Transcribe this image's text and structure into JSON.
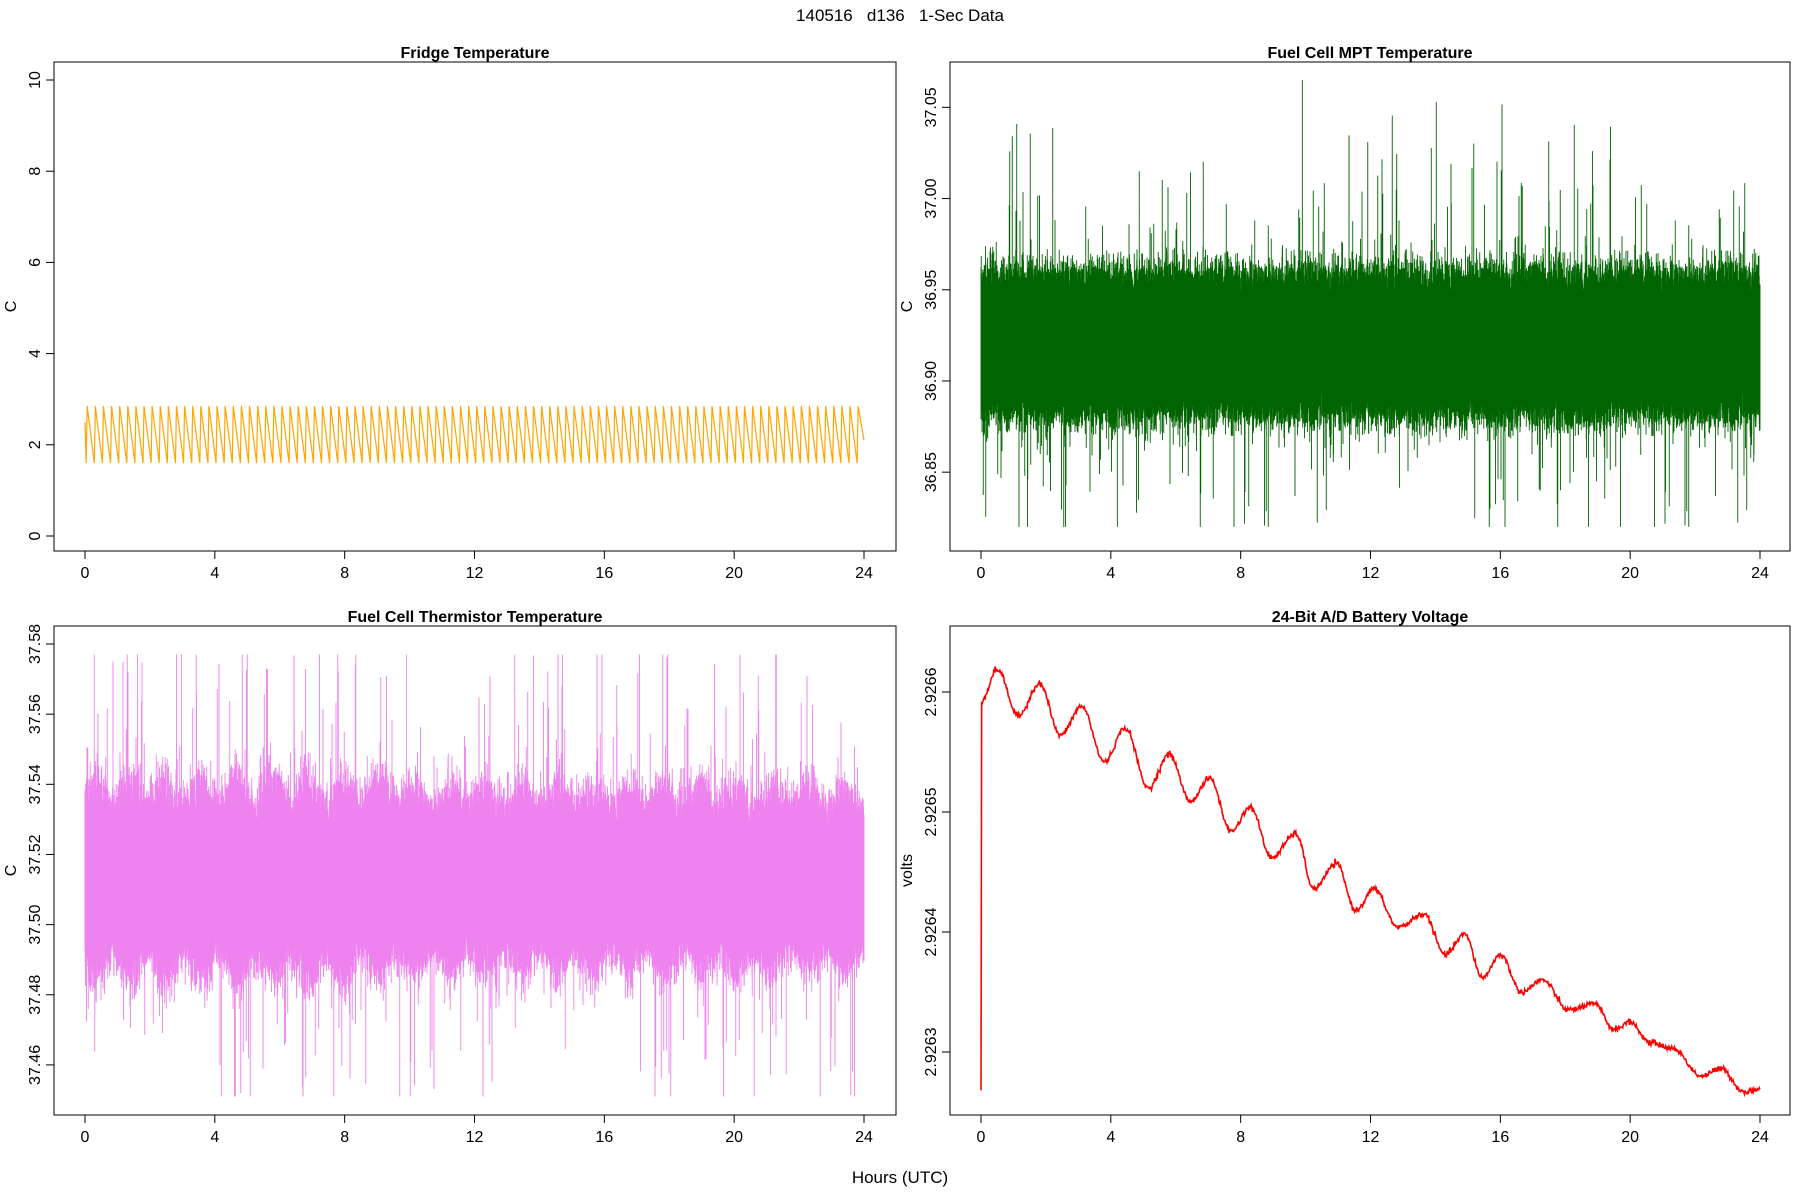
{
  "figure": {
    "title": "140516   d136   1-Sec Data",
    "xlabel": "Hours (UTC)"
  },
  "chart_data": [
    {
      "id": "fridge",
      "type": "line",
      "title": "Fridge Temperature",
      "ylabel": "C",
      "xlabel": "",
      "xlim": [
        0,
        24
      ],
      "ylim": [
        0,
        10
      ],
      "xticks": [
        0,
        4,
        8,
        12,
        16,
        20,
        24
      ],
      "yticks": [
        0,
        2,
        4,
        6,
        8,
        10
      ],
      "ytick_labels": [
        "0",
        "2",
        "4",
        "6",
        "8",
        "10"
      ],
      "color": "#FFA500",
      "series": [
        {
          "signal": "sawtooth",
          "x_range": [
            0,
            24
          ],
          "cycles": 96,
          "y_min": 1.6,
          "y_max": 2.85,
          "start_y": 2.5,
          "end_y": 2.1
        }
      ]
    },
    {
      "id": "fuel-cell-mpt",
      "type": "line",
      "title": "Fuel Cell MPT Temperature",
      "ylabel": "C",
      "xlabel": "",
      "xlim": [
        0,
        24
      ],
      "ylim": [
        36.815,
        37.065
      ],
      "xticks": [
        0,
        4,
        8,
        12,
        16,
        20,
        24
      ],
      "yticks": [
        36.85,
        36.9,
        36.95,
        37.0,
        37.05
      ],
      "ytick_labels": [
        "36.85",
        "36.90",
        "36.95",
        "37.00",
        "37.05"
      ],
      "color": "#006400",
      "series": [
        {
          "signal": "noise-band",
          "x_range": [
            0,
            24
          ],
          "center": 36.92,
          "core_half_width": 0.04,
          "extreme_min": 36.82,
          "extreme_max": 37.065
        }
      ]
    },
    {
      "id": "fuel-cell-thermistor",
      "type": "line",
      "title": "Fuel Cell Thermistor Temperature",
      "ylabel": "C",
      "xlabel": "",
      "xlim": [
        0,
        24
      ],
      "ylim": [
        37.45,
        37.58
      ],
      "xticks": [
        0,
        4,
        8,
        12,
        16,
        20,
        24
      ],
      "yticks": [
        37.46,
        37.48,
        37.5,
        37.52,
        37.54,
        37.56,
        37.58
      ],
      "ytick_labels": [
        "37.46",
        "37.48",
        "37.50",
        "37.52",
        "37.54",
        "37.56",
        "37.58"
      ],
      "color": "#EE82EE",
      "series": [
        {
          "signal": "modulated-noise-band",
          "x_range": [
            0,
            24
          ],
          "center": 37.513,
          "core_half_width": 0.023,
          "modulation_period_hours": 1.1,
          "extreme_min": 37.451,
          "extreme_max": 37.577
        }
      ]
    },
    {
      "id": "battery-voltage",
      "type": "line",
      "title": "24-Bit A/D Battery Voltage",
      "ylabel": "volts",
      "xlabel": "",
      "xlim": [
        0,
        24
      ],
      "ylim": [
        2.92626,
        2.92664
      ],
      "xticks": [
        0,
        4,
        8,
        12,
        16,
        20,
        24
      ],
      "yticks": [
        2.9263,
        2.9264,
        2.9265,
        2.9266
      ],
      "ytick_labels": [
        "2.9263",
        "2.9264",
        "2.9265",
        "2.9266"
      ],
      "color": "#FF0000",
      "series": [
        {
          "signal": "points",
          "x": [
            0,
            0.02,
            0.5,
            1.15,
            1.8,
            2.45,
            3.1,
            3.8,
            4.45,
            5.15,
            5.8,
            6.45,
            7.05,
            7.7,
            8.3,
            8.95,
            9.7,
            10.25,
            10.95,
            11.55,
            12.1,
            12.85,
            13.65,
            14.3,
            14.9,
            15.45,
            16.0,
            16.65,
            17.3,
            18.1,
            18.9,
            19.5,
            20.0,
            20.6,
            21.3,
            22.2,
            22.8,
            23.5,
            24.0
          ],
          "y": [
            2.926268,
            2.926593,
            2.926619,
            2.92658,
            2.926607,
            2.926564,
            2.926588,
            2.926542,
            2.92657,
            2.92652,
            2.926548,
            2.926509,
            2.926528,
            2.926484,
            2.926504,
            2.926462,
            2.926482,
            2.926436,
            2.926457,
            2.926418,
            2.926436,
            2.926404,
            2.926415,
            2.926381,
            2.926398,
            2.926362,
            2.926381,
            2.92635,
            2.92636,
            2.926335,
            2.92634,
            2.926319,
            2.926325,
            2.926308,
            2.926303,
            2.92628,
            2.926286,
            2.926267,
            2.926269
          ]
        }
      ]
    }
  ]
}
